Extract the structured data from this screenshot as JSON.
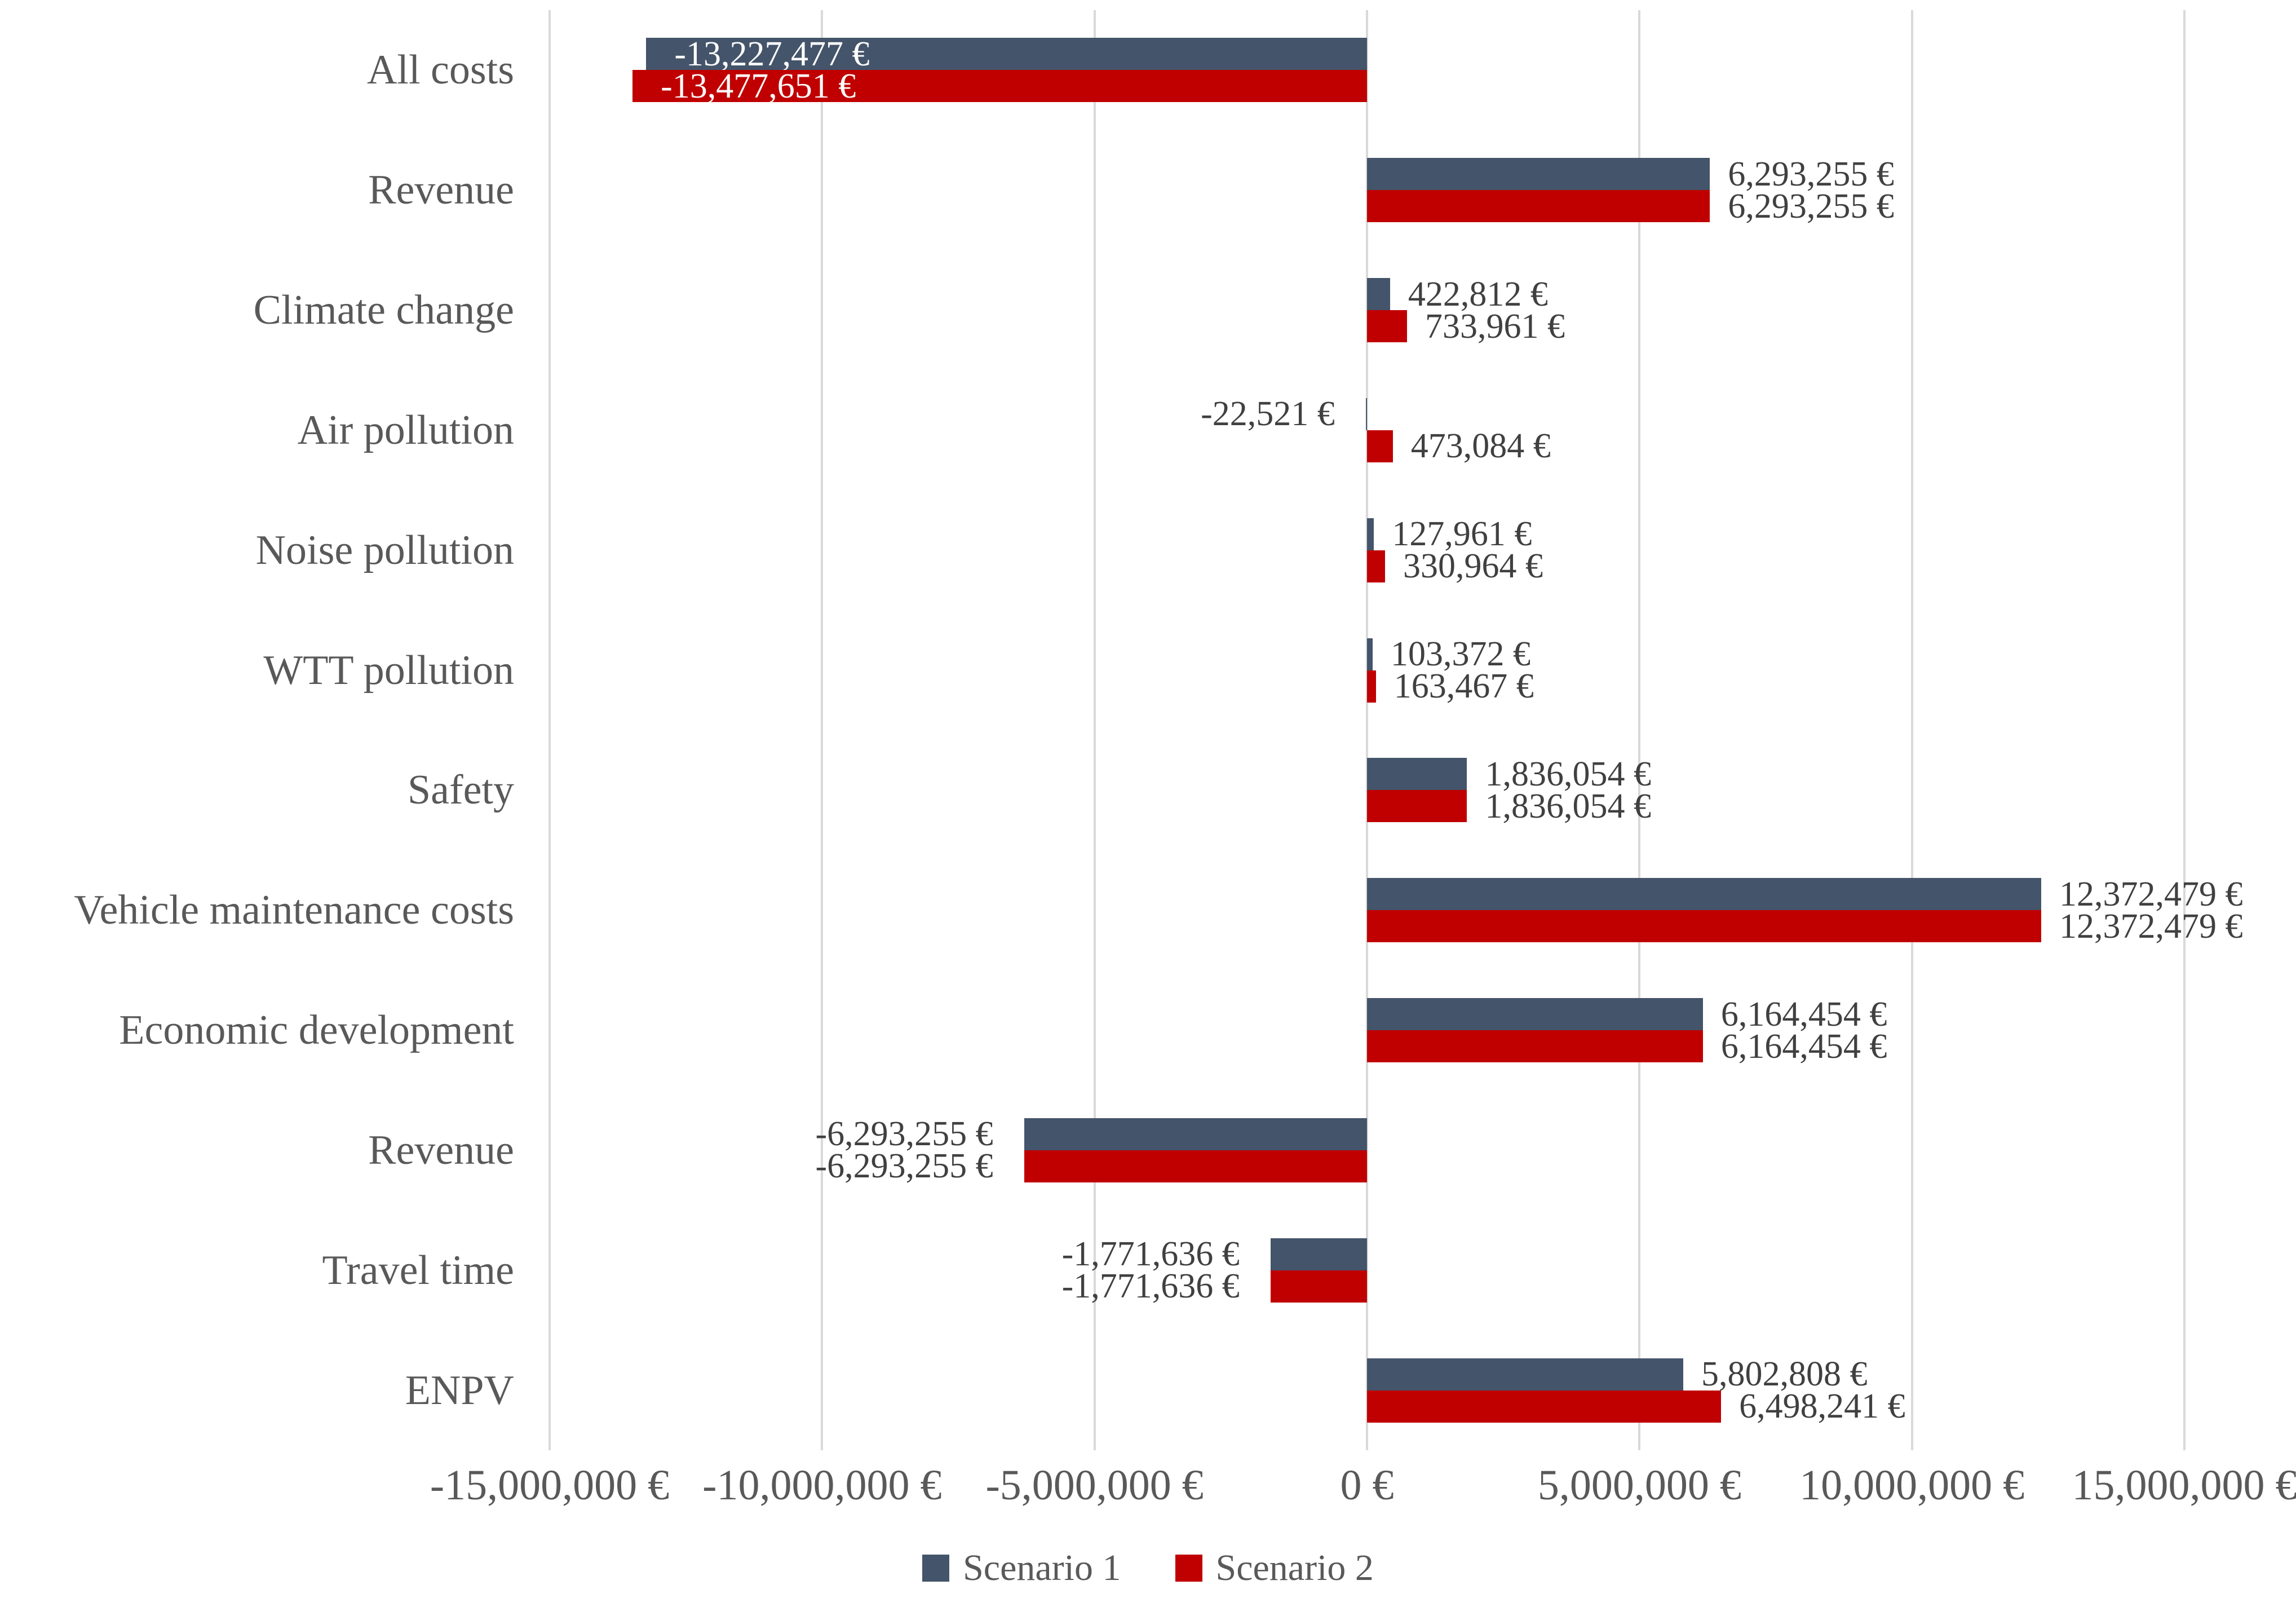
{
  "chart_data": {
    "type": "bar",
    "orientation": "horizontal",
    "title": "",
    "categories": [
      "All costs",
      "Revenue",
      "Climate change",
      "Air pollution",
      "Noise pollution",
      "WTT pollution",
      "Safety",
      "Vehicle maintenance costs",
      "Economic development",
      "Revenue",
      "Travel time",
      "ENPV"
    ],
    "series": [
      {
        "name": "Scenario 1",
        "color": "#44546A",
        "values": [
          -13227477,
          6293255,
          422812,
          -22521,
          127961,
          103372,
          1836054,
          12372479,
          6164454,
          -6293255,
          -1771636,
          5802808
        ],
        "labels": [
          "-13,227,477 €",
          "6,293,255 €",
          "422,812 €",
          "-22,521 €",
          "127,961 €",
          "103,372 €",
          "1,836,054 €",
          "12,372,479 €",
          "6,164,454 €",
          "-6,293,255 €",
          "-1,771,636 €",
          "5,802,808 €"
        ]
      },
      {
        "name": "Scenario 2",
        "color": "#C00000",
        "values": [
          -13477651,
          6293255,
          733961,
          473084,
          330964,
          163467,
          1836054,
          12372479,
          6164454,
          -6293255,
          -1771636,
          6498241
        ],
        "labels": [
          "-13,477,651 €",
          "6,293,255 €",
          "733,961 €",
          "473,084 €",
          "330,964 €",
          "163,467 €",
          "1,836,054 €",
          "12,372,479 €",
          "6,164,454 €",
          "-6,293,255 €",
          "-1,771,636 €",
          "6,498,241 €"
        ]
      }
    ],
    "xlim": [
      -15000000,
      15000000
    ],
    "x_ticks": [
      {
        "value": -15000000,
        "label": "-15,000,000 €"
      },
      {
        "value": -10000000,
        "label": "-10,000,000 €"
      },
      {
        "value": -5000000,
        "label": "-5,000,000 €"
      },
      {
        "value": 0,
        "label": "0 €"
      },
      {
        "value": 5000000,
        "label": "5,000,000 €"
      },
      {
        "value": 10000000,
        "label": "10,000,000 €"
      },
      {
        "value": 15000000,
        "label": "15,000,000 €"
      }
    ],
    "grid": true,
    "legend_position": "bottom",
    "inside_label_rows": [
      0
    ],
    "colors": {
      "gridline": "#D9D9D9",
      "category_text": "#595959",
      "axis_text": "#595959",
      "data_label_text": "#404040",
      "inside_label_text": "#FFFFFF",
      "background": "#FFFFFF"
    }
  }
}
